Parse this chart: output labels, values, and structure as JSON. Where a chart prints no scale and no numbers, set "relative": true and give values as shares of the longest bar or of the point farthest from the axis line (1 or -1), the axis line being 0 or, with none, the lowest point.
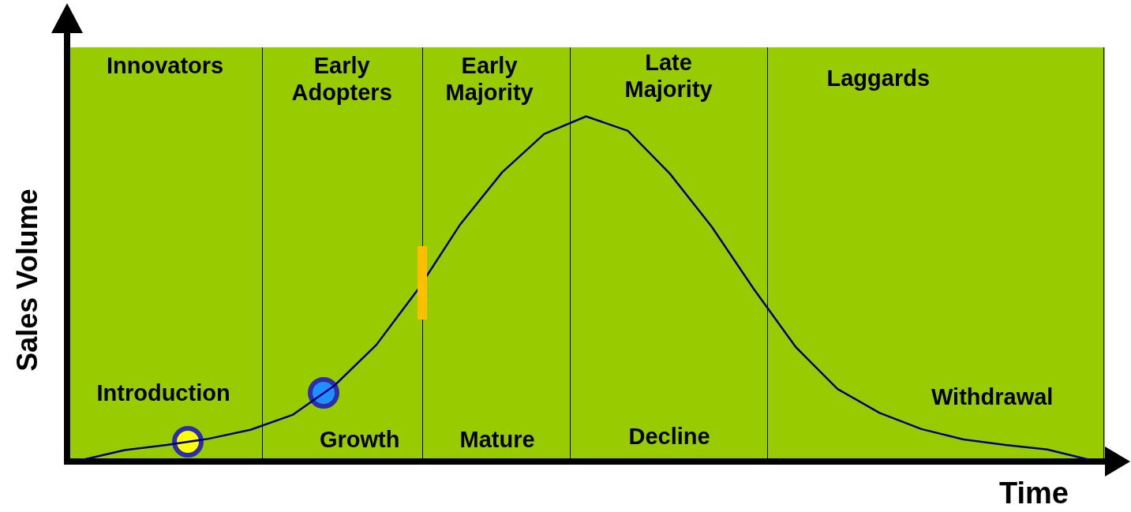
{
  "chart_data": {
    "type": "line",
    "xlabel": "Time",
    "ylabel": "Sales Volume",
    "relative": true,
    "legend": false,
    "grid": false,
    "marker": "none",
    "color": "#000080",
    "categories": [
      null,
      null,
      null,
      null,
      null,
      null,
      null,
      null,
      null,
      null,
      null,
      null,
      null,
      null,
      null,
      null,
      null,
      null,
      null,
      null,
      null,
      null,
      null,
      null,
      null
    ],
    "values": [
      0.005,
      0.033,
      0.048,
      0.066,
      0.092,
      0.135,
      0.22,
      0.338,
      0.5,
      0.687,
      0.838,
      0.949,
      1,
      0.958,
      0.834,
      0.68,
      0.5,
      0.332,
      0.21,
      0.141,
      0.094,
      0.064,
      0.048,
      0.035,
      0.005
    ],
    "annotations": [
      "Innovators",
      "Early Adopters",
      "Early Majority",
      "Late Majority",
      "Laggards",
      "Introduction",
      "Growth",
      "Mature",
      "Decline",
      "Withdrawal"
    ]
  }
}
